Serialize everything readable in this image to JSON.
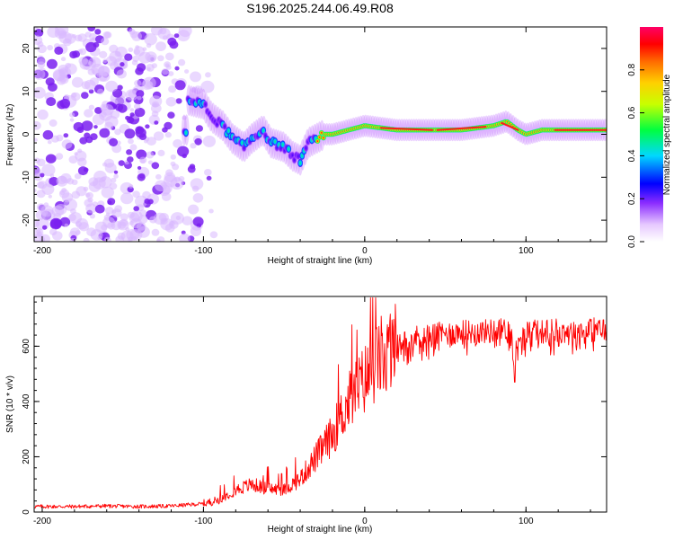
{
  "figure_title": "S196.2025.244.06.49.R08",
  "chart_data": [
    {
      "type": "heatmap",
      "name": "spectrogram",
      "title": "S196.2025.244.06.49.R08",
      "xlabel": "Height of straight line (km)",
      "ylabel": "Frequency (Hz)",
      "xlim": [
        -205,
        150
      ],
      "ylim": [
        -25,
        25
      ],
      "xticks": [
        -200,
        -100,
        0,
        100
      ],
      "yticks": [
        -20,
        -10,
        0,
        10,
        20
      ],
      "colorbar": {
        "label": "Normalized spectral amplitude",
        "range": [
          0,
          1
        ],
        "ticks": [
          "0.0",
          "0.2",
          "0.4",
          "0.6",
          "0.8"
        ],
        "colors": [
          "#ffffff",
          "#c77dff",
          "#6a00ff",
          "#0000ff",
          "#00ffff",
          "#00ff00",
          "#ffff00",
          "#ff8000",
          "#ff0000",
          "#ff0066"
        ]
      },
      "ridge": {
        "description_points_x": [
          -110,
          -100,
          -95,
          -88,
          -82,
          -75,
          -70,
          -63,
          -58,
          -50,
          -45,
          -40,
          -35,
          -30,
          -25,
          -20,
          -10,
          0,
          20,
          60,
          80,
          88,
          95,
          100,
          110,
          150
        ],
        "description_points_y": [
          8,
          7,
          4,
          2,
          -1,
          -3,
          -1,
          1,
          -2,
          -3,
          -5,
          -6,
          -2,
          -1,
          0,
          0,
          1,
          2,
          1,
          1,
          2,
          3,
          1,
          0,
          1,
          1
        ]
      }
    },
    {
      "type": "line",
      "name": "snr",
      "xlabel": "Height of straight line (km)",
      "ylabel": "SNR (10 * v/v)",
      "xlim": [
        -205,
        150
      ],
      "ylim": [
        0,
        780
      ],
      "xticks": [
        -200,
        -100,
        0,
        100
      ],
      "yticks": [
        0,
        200,
        400,
        600
      ],
      "series": [
        {
          "name": "SNR",
          "color": "#ff0000",
          "x": [
            -205,
            -180,
            -160,
            -140,
            -120,
            -100,
            -90,
            -80,
            -70,
            -60,
            -50,
            -40,
            -30,
            -20,
            -10,
            0,
            10,
            20,
            30,
            40,
            60,
            80,
            90,
            93,
            100,
            120,
            150
          ],
          "y": [
            20,
            20,
            22,
            20,
            22,
            30,
            45,
            80,
            100,
            85,
            80,
            120,
            200,
            280,
            400,
            480,
            560,
            600,
            630,
            640,
            650,
            655,
            660,
            570,
            650,
            655,
            660
          ]
        }
      ]
    }
  ]
}
